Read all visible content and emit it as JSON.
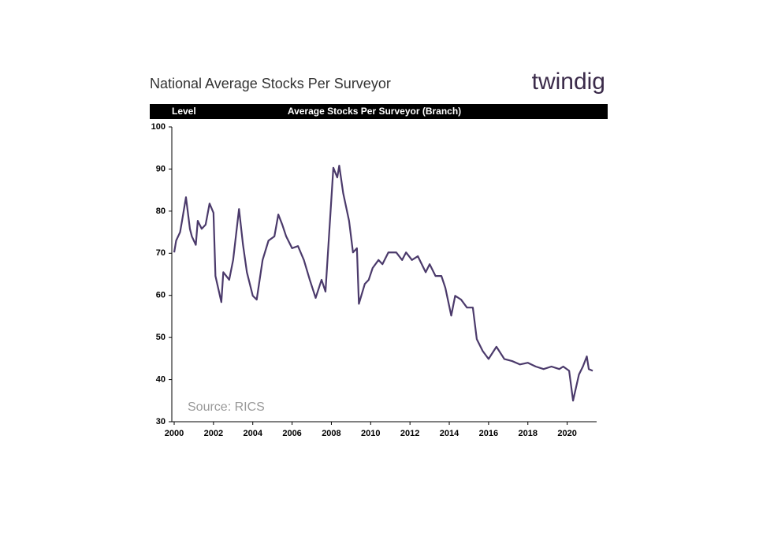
{
  "chart_data": {
    "type": "line",
    "title": "National Average Stocks Per Surveyor",
    "logo": "twindig",
    "header_left": "Level",
    "header_center": "Average Stocks Per Surveyor (Branch)",
    "source": "Source: RICS",
    "x": [
      2000.0,
      2000.1,
      2000.3,
      2000.4,
      2000.6,
      2000.8,
      2000.9,
      2001.1,
      2001.2,
      2001.4,
      2001.6,
      2001.8,
      2002.0,
      2002.1,
      2002.4,
      2002.5,
      2002.8,
      2003.0,
      2003.3,
      2003.5,
      2003.7,
      2004.0,
      2004.2,
      2004.5,
      2004.8,
      2005.1,
      2005.3,
      2005.5,
      2005.7,
      2006.0,
      2006.3,
      2006.6,
      2006.9,
      2007.2,
      2007.5,
      2007.7,
      2008.1,
      2008.3,
      2008.4,
      2008.6,
      2008.9,
      2009.1,
      2009.3,
      2009.4,
      2009.7,
      2009.9,
      2010.1,
      2010.4,
      2010.6,
      2010.9,
      2011.3,
      2011.6,
      2011.8,
      2012.1,
      2012.4,
      2012.8,
      2013.0,
      2013.3,
      2013.6,
      2013.8,
      2014.1,
      2014.3,
      2014.6,
      2014.9,
      2015.2,
      2015.4,
      2015.7,
      2016.0,
      2016.4,
      2016.8,
      2017.2,
      2017.6,
      2018.0,
      2018.4,
      2018.8,
      2019.2,
      2019.6,
      2019.8,
      2020.1,
      2020.3,
      2020.6,
      2020.8,
      2021.0,
      2021.1,
      2021.3
    ],
    "series": [
      {
        "name": "Average Stocks Per Surveyor (Branch)",
        "color": "#4b3a6b",
        "values": [
          70.2,
          73,
          75,
          77.7,
          83.3,
          75.8,
          74,
          72,
          77.7,
          75.8,
          76.8,
          81.8,
          79.6,
          64.6,
          58.4,
          65.5,
          63.7,
          68.4,
          80.5,
          72.1,
          65.5,
          59.9,
          59,
          68.4,
          73,
          74,
          79.2,
          76.8,
          74,
          71.2,
          71.7,
          68.4,
          63.7,
          59.4,
          63.7,
          60.9,
          90.3,
          88,
          90.8,
          84.3,
          77.7,
          70.2,
          71.2,
          58,
          62.7,
          63.7,
          66.5,
          68.4,
          67.4,
          70.2,
          70.2,
          68.4,
          70.2,
          68.4,
          69.3,
          65.5,
          67.4,
          64.6,
          64.6,
          61.8,
          55.2,
          59.9,
          59,
          57.1,
          57.1,
          49.6,
          46.8,
          44.9,
          47.8,
          44.9,
          44.4,
          43.6,
          44,
          43.1,
          42.5,
          43.1,
          42.5,
          43.1,
          42.1,
          35,
          41.2,
          43.1,
          45.5,
          42.5,
          42.1
        ]
      }
    ],
    "xlim": [
      2000,
      2021.5
    ],
    "xticks": [
      2000,
      2002,
      2004,
      2006,
      2008,
      2010,
      2012,
      2014,
      2016,
      2018,
      2020
    ],
    "ylim": [
      30,
      100
    ],
    "yticks": [
      30,
      40,
      50,
      60,
      70,
      80,
      90,
      100
    ],
    "grid": false
  }
}
